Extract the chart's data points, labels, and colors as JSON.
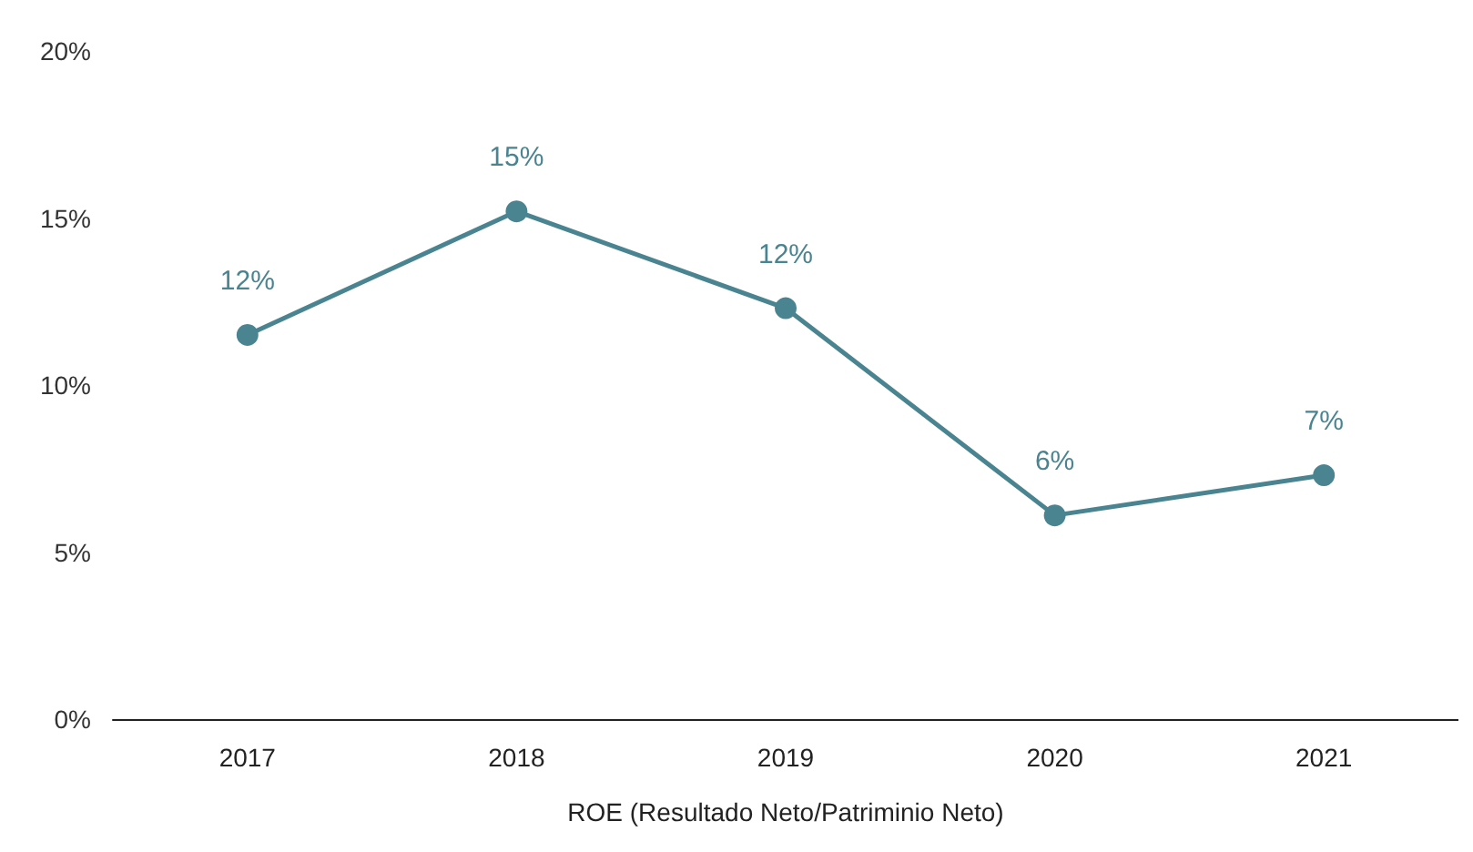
{
  "chart_data": {
    "type": "line",
    "xlabel": "ROE (Resultado Neto/Patriminio Neto)",
    "categories": [
      "2017",
      "2018",
      "2019",
      "2020",
      "2021"
    ],
    "series": [
      {
        "color": "#4a8491",
        "values": [
          11.5,
          15.2,
          12.3,
          6.1,
          7.3
        ],
        "value_labels": [
          "12%",
          "15%",
          "12%",
          "6%",
          "7%"
        ]
      }
    ],
    "ylim": [
      0,
      20
    ],
    "yticks": [
      {
        "value": 0,
        "label": "0%"
      },
      {
        "value": 5,
        "label": "5%"
      },
      {
        "value": 10,
        "label": "10%"
      },
      {
        "value": 15,
        "label": "15%"
      },
      {
        "value": 20,
        "label": "20%"
      }
    ],
    "grid": false,
    "marker": "circle",
    "line_style": "solid"
  }
}
